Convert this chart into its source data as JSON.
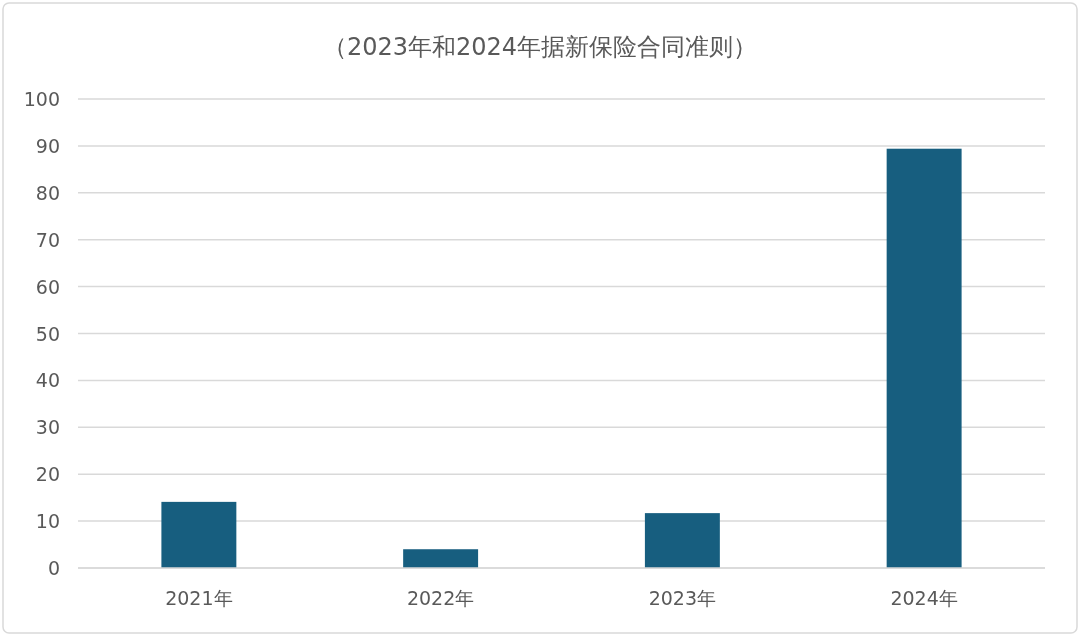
{
  "chart_data": {
    "type": "bar",
    "title": "（2023年和2024年据新保险合同准则）",
    "categories": [
      "2021年",
      "2022年",
      "2023年",
      "2024年"
    ],
    "values": [
      14.1,
      4.0,
      11.7,
      89.4
    ],
    "color": "#175e7f",
    "ylim": [
      0,
      100
    ],
    "yticks": [
      0,
      10,
      20,
      30,
      40,
      50,
      60,
      70,
      80,
      90,
      100
    ],
    "grid": "y"
  }
}
